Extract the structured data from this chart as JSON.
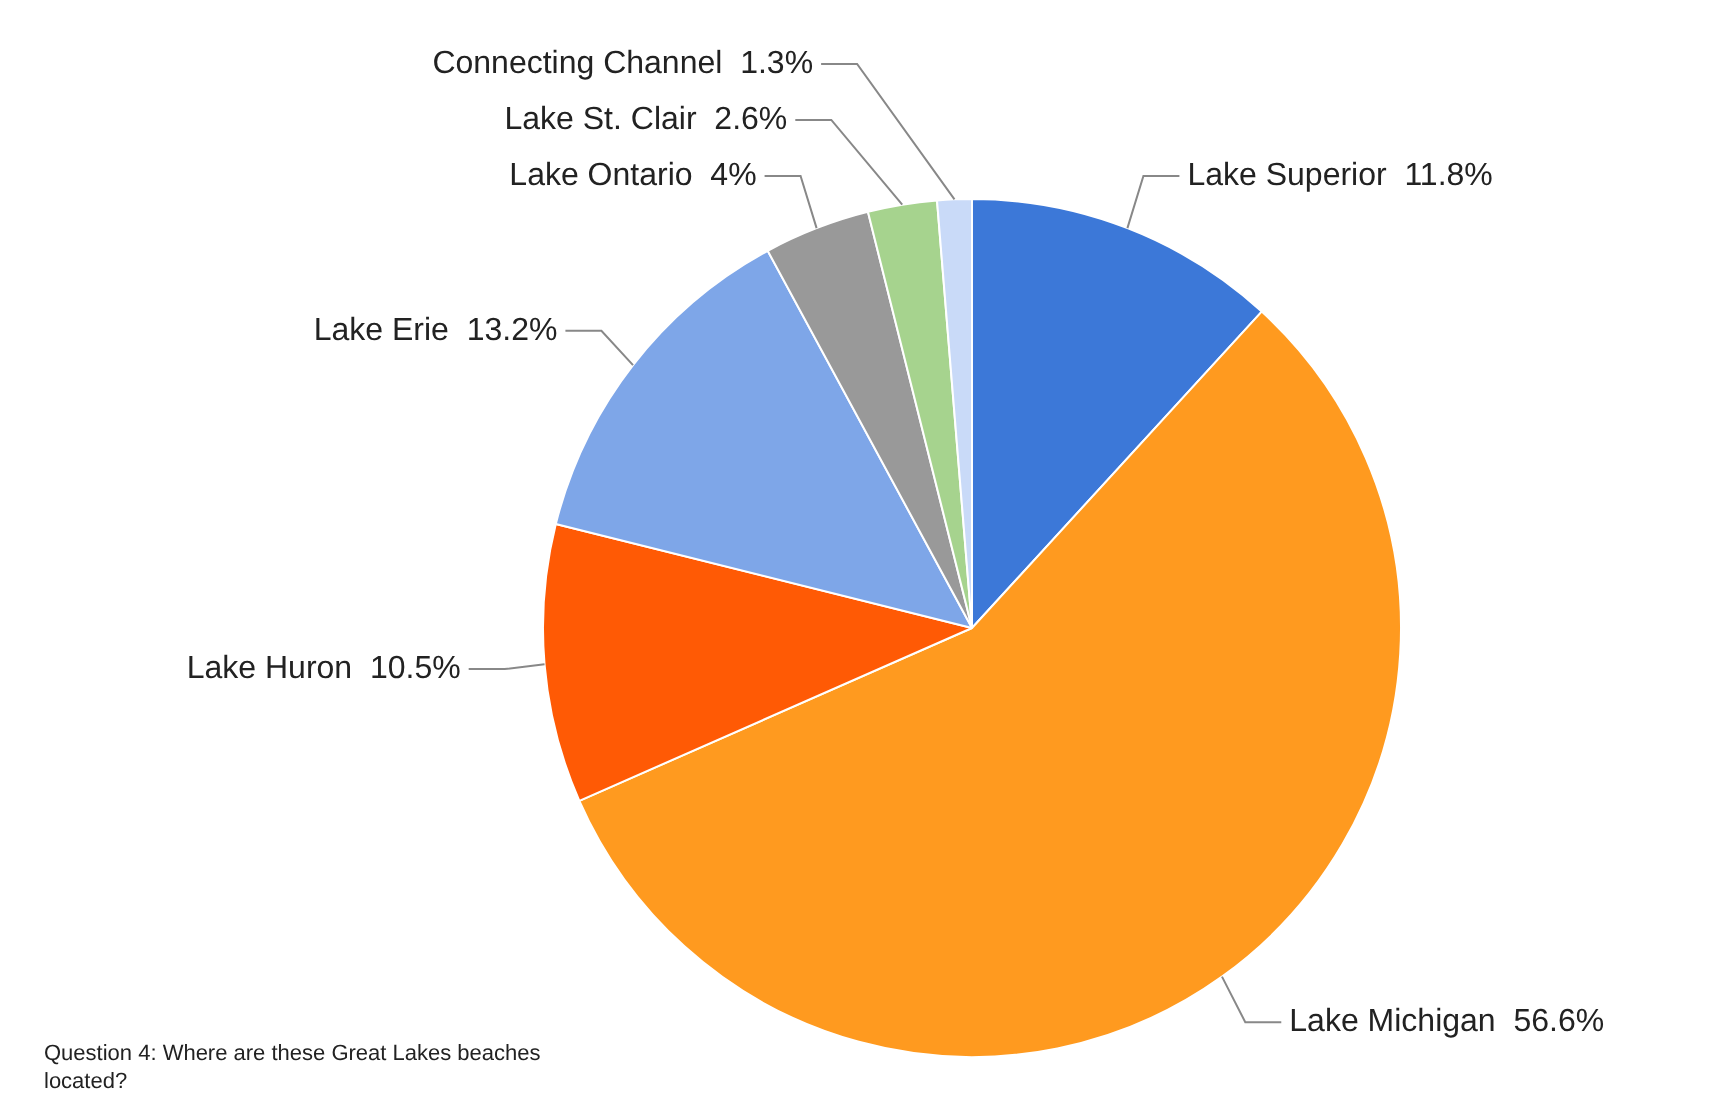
{
  "chart_data": {
    "type": "pie",
    "categories": [
      "Lake Superior",
      "Lake Michigan",
      "Lake Huron",
      "Lake Erie",
      "Lake Ontario",
      "Lake St. Clair",
      "Connecting Channel"
    ],
    "values": [
      11.8,
      56.6,
      10.5,
      13.2,
      4,
      2.6,
      1.3
    ],
    "value_labels": [
      "11.8%",
      "56.6%",
      "10.5%",
      "13.2%",
      "4%",
      "2.6%",
      "1.3%"
    ],
    "colors": [
      "#3c78d8",
      "#ff9a1f",
      "#ff5a05",
      "#7ea6e8",
      "#999999",
      "#a6d38e",
      "#c9daf8"
    ],
    "legend": false,
    "annotations": [
      "Question 4: Where are these Great Lakes beaches located?"
    ]
  }
}
